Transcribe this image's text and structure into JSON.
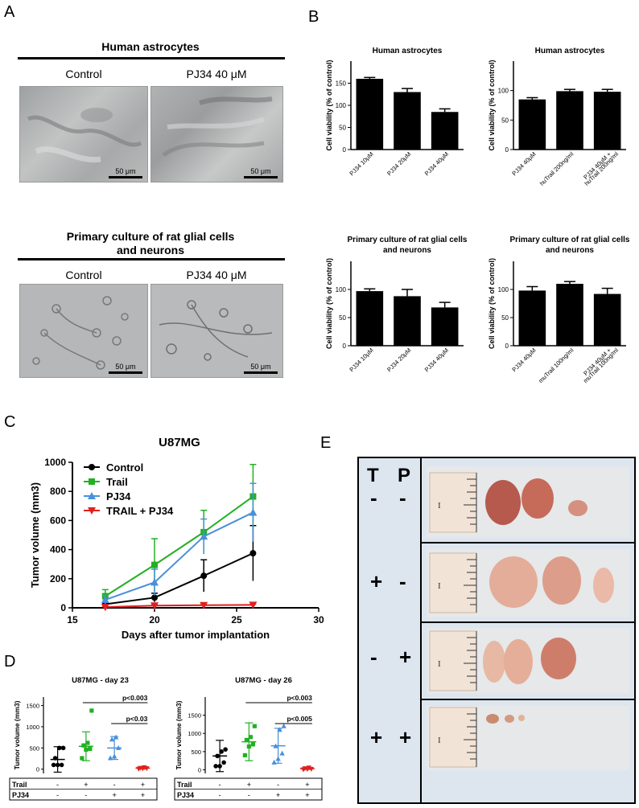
{
  "panels": {
    "A": "A",
    "B": "B",
    "C": "C",
    "D": "D",
    "E": "E"
  },
  "panel_a": {
    "section1_title": "Human astrocytes",
    "section2_title_line1": "Primary culture of rat glial cells",
    "section2_title_line2": "and neurons",
    "control_label": "Control",
    "pj34_label": "PJ34 40 μM",
    "scale_label": "50 μm"
  },
  "colors": {
    "control": "#000000",
    "trail": "#22b022",
    "pj34": "#4a90d9",
    "trail_pj34": "#e02020",
    "bar_fill": "#000000",
    "tp_panel_bg": "#dde6ef"
  },
  "chart_data": [
    {
      "id": "b1",
      "type": "bar",
      "title": "Human astrocytes",
      "ylabel": "Cell viability (% of control)",
      "categories": [
        "PJ34 10μM",
        "PJ34 20μM",
        "PJ34 40μM"
      ],
      "values": [
        160,
        130,
        85
      ],
      "errors": [
        3,
        8,
        7
      ],
      "ylim": [
        0,
        200
      ],
      "yticks": [
        0,
        50,
        100,
        150
      ]
    },
    {
      "id": "b2",
      "type": "bar",
      "title": "Human astrocytes",
      "ylabel": "Cell viability (% of control)",
      "categories": [
        "PJ34 40μM",
        "huTrail 200ng/ml",
        "PJ34 40μM +\nhuTrail 200ng/ml"
      ],
      "values": [
        85,
        99,
        98
      ],
      "errors": [
        3,
        3,
        4
      ],
      "ylim": [
        0,
        150
      ],
      "yticks": [
        0,
        50,
        100
      ]
    },
    {
      "id": "b3",
      "type": "bar",
      "title": "Primary culture of rat glial cells\nand neurons",
      "ylabel": "Cell viability (% of control)",
      "categories": [
        "PJ34 10μM",
        "PJ34 20μM",
        "PJ34 40μM"
      ],
      "values": [
        97,
        88,
        68
      ],
      "errors": [
        4,
        12,
        9
      ],
      "ylim": [
        0,
        150
      ],
      "yticks": [
        0,
        50,
        100
      ]
    },
    {
      "id": "b4",
      "type": "bar",
      "title": "Primary culture of rat glial cells\nand neurons",
      "ylabel": "Cell viability (% of control)",
      "categories": [
        "PJ34 40μM",
        "muTrail 100ng/ml",
        "PJ34 40μM +\nmuTrail 100ng/ml"
      ],
      "values": [
        98,
        110,
        92
      ],
      "errors": [
        7,
        4,
        10
      ],
      "ylim": [
        0,
        150
      ],
      "yticks": [
        0,
        50,
        100
      ]
    },
    {
      "id": "c",
      "type": "line",
      "title": "U87MG",
      "xlabel": "Days after tumor implantation",
      "ylabel": "Tumor volume (mm3)",
      "xlim": [
        15,
        30
      ],
      "ylim": [
        0,
        1000
      ],
      "xticks": [
        15,
        20,
        25,
        30
      ],
      "yticks": [
        0,
        200,
        400,
        600,
        800,
        1000
      ],
      "x": [
        17,
        20,
        23,
        26
      ],
      "series": [
        {
          "name": "Control",
          "marker": "circle",
          "values": [
            25,
            70,
            220,
            375
          ],
          "errors": [
            10,
            30,
            110,
            190
          ]
        },
        {
          "name": "Trail",
          "marker": "square",
          "values": [
            80,
            295,
            520,
            765
          ],
          "errors": [
            45,
            180,
            150,
            220
          ]
        },
        {
          "name": "PJ34",
          "marker": "triangle-up",
          "values": [
            55,
            175,
            490,
            655
          ],
          "errors": [
            30,
            90,
            120,
            200
          ]
        },
        {
          "name": "TRAIL + PJ34",
          "marker": "triangle-down",
          "values": [
            5,
            15,
            18,
            20
          ],
          "errors": [
            3,
            5,
            5,
            5
          ]
        }
      ]
    },
    {
      "id": "d1",
      "type": "scatter",
      "title": "U87MG - day 23",
      "ylabel": "Tumor volume (mm3)",
      "ylim": [
        -100,
        1700
      ],
      "yticks": [
        0,
        500,
        1000,
        1500
      ],
      "groups": [
        {
          "points": [
            100,
            100,
            100,
            260,
            500,
            500
          ],
          "mean": 230,
          "sd": 300
        },
        {
          "points": [
            260,
            460,
            480,
            560,
            620,
            1380
          ],
          "mean": 540,
          "sd": 340
        },
        {
          "points": [
            260,
            300,
            500,
            700,
            750
          ],
          "mean": 500,
          "sd": 270
        },
        {
          "points": [
            10,
            15,
            20,
            30,
            45
          ],
          "mean": 25,
          "sd": 15
        }
      ],
      "sig": [
        {
          "text": "p<0.003",
          "from": 1,
          "to": 3
        },
        {
          "text": "p<0.03",
          "from": 2,
          "to": 3
        }
      ],
      "rows": [
        {
          "label": "Trail",
          "values": [
            "-",
            "+",
            "-",
            "+"
          ]
        },
        {
          "label": "PJ34",
          "values": [
            "-",
            "-",
            "+",
            "+"
          ]
        }
      ]
    },
    {
      "id": "d2",
      "type": "scatter",
      "title": "U87MG - day 26",
      "ylabel": "Tumor volume (mm3)",
      "ylim": [
        -100,
        2000
      ],
      "yticks": [
        0,
        500,
        1000,
        1500
      ],
      "groups": [
        {
          "points": [
            100,
            100,
            200,
            380,
            500,
            560
          ],
          "mean": 380,
          "sd": 430
        },
        {
          "points": [
            400,
            640,
            700,
            820,
            900,
            1200
          ],
          "mean": 770,
          "sd": 520
        },
        {
          "points": [
            200,
            300,
            450,
            650,
            1100,
            1200
          ],
          "mean": 660,
          "sd": 480
        },
        {
          "points": [
            10,
            20,
            25,
            40,
            60
          ],
          "mean": 30,
          "sd": 18
        }
      ],
      "sig": [
        {
          "text": "p<0.003",
          "from": 1,
          "to": 3
        },
        {
          "text": "p<0.005",
          "from": 2,
          "to": 3
        }
      ],
      "rows": [
        {
          "label": "Trail",
          "values": [
            "-",
            "+",
            "-",
            "+"
          ]
        },
        {
          "label": "PJ34",
          "values": [
            "-",
            "-",
            "+",
            "+"
          ]
        }
      ]
    }
  ],
  "panel_e": {
    "col_t": "T",
    "col_p": "P",
    "rows": [
      {
        "t": "-",
        "p": "-"
      },
      {
        "t": "+",
        "p": "-"
      },
      {
        "t": "-",
        "p": "+"
      },
      {
        "t": "+",
        "p": "+"
      }
    ],
    "ruler_mark": "I"
  }
}
